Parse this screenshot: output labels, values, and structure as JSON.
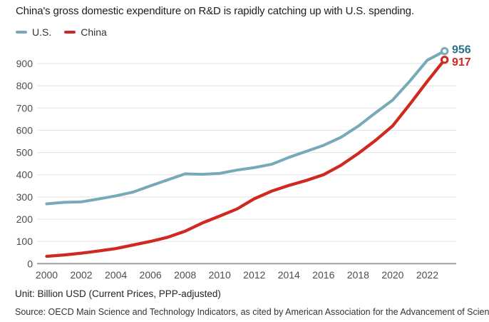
{
  "header": {
    "title": "China's gross domestic expenditure on R&D is rapidly catching up with U.S. spending."
  },
  "footer": {
    "unit_label": "Unit: Billion USD (Current Prices, PPP-adjusted)",
    "source": "Source: OECD Main Science and Technology Indicators, as cited by American Association for the Advancement of Science."
  },
  "chart_data": {
    "type": "line",
    "title": "China's gross domestic expenditure on R&D is rapidly catching up with U.S. spending.",
    "xlabel": "",
    "ylabel": "Billion USD (Current Prices, PPP-adjusted)",
    "grid": true,
    "legend_position": "top-left",
    "ylim": [
      0,
      1000
    ],
    "x": [
      2000,
      2001,
      2002,
      2003,
      2004,
      2005,
      2006,
      2007,
      2008,
      2009,
      2010,
      2011,
      2012,
      2013,
      2014,
      2015,
      2016,
      2017,
      2018,
      2019,
      2020,
      2021,
      2022,
      2023
    ],
    "x_ticks": [
      2000,
      2002,
      2004,
      2006,
      2008,
      2010,
      2012,
      2014,
      2016,
      2018,
      2020,
      2022
    ],
    "y_ticks": [
      0,
      100,
      200,
      300,
      400,
      500,
      600,
      700,
      800,
      900
    ],
    "series": [
      {
        "name": "U.S.",
        "color": "#76aab8",
        "label_color": "#26708a",
        "end_value_label": "956",
        "values": [
          269,
          276,
          278,
          291,
          305,
          322,
          350,
          377,
          404,
          402,
          406,
          421,
          432,
          447,
          478,
          505,
          532,
          568,
          618,
          678,
          736,
          822,
          915,
          956
        ]
      },
      {
        "name": "China",
        "color": "#cf2a21",
        "label_color": "#cf2a21",
        "end_value_label": "917",
        "values": [
          33,
          39,
          47,
          57,
          68,
          84,
          100,
          119,
          146,
          183,
          214,
          246,
          292,
          326,
          352,
          374,
          400,
          442,
          495,
          554,
          620,
          718,
          820,
          917
        ]
      }
    ]
  }
}
